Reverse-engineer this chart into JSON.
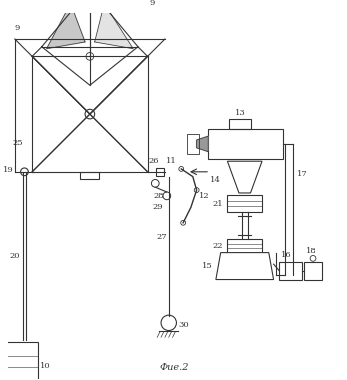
{
  "title": "Фие.2",
  "bg_color": "#ffffff",
  "line_color": "#333333",
  "figsize": [
    3.47,
    3.8
  ],
  "dpi": 100
}
